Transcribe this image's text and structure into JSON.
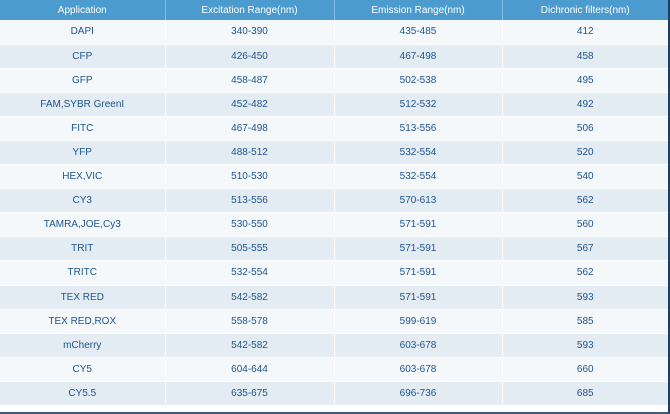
{
  "table": {
    "headers": [
      "Application",
      "Excitation Range(nm)",
      "Emission Range(nm)",
      "Dichronic filters(nm)"
    ],
    "rows": [
      [
        "DAPI",
        "340-390",
        "435-485",
        "412"
      ],
      [
        "CFP",
        "426-450",
        "467-498",
        "458"
      ],
      [
        "GFP",
        "458-487",
        "502-538",
        "495"
      ],
      [
        "FAM,SYBR GreenI",
        "452-482",
        "512-532",
        "492"
      ],
      [
        "FITC",
        "467-498",
        "513-556",
        "506"
      ],
      [
        "YFP",
        "488-512",
        "532-554",
        "520"
      ],
      [
        "HEX,VIC",
        "510-530",
        "532-554",
        "540"
      ],
      [
        "CY3",
        "513-556",
        "570-613",
        "562"
      ],
      [
        "TAMRA,JOE,Cy3",
        "530-550",
        "571-591",
        "560"
      ],
      [
        "TRIT",
        "505-555",
        "571-591",
        "567"
      ],
      [
        "TRITC",
        "532-554",
        "571-591",
        "562"
      ],
      [
        "TEX RED",
        "542-582",
        "571-591",
        "593"
      ],
      [
        "TEX RED,ROX",
        "558-578",
        "599-619",
        "585"
      ],
      [
        "mCherry",
        "542-582",
        "603-678",
        "593"
      ],
      [
        "CY5",
        "604-644",
        "603-678",
        "660"
      ],
      [
        "CY5.5",
        "635-675",
        "696-736",
        "685"
      ]
    ]
  },
  "colors": {
    "header_bg": "#4c9bce",
    "header_text": "#ffffff",
    "cell_text": "#21558f",
    "row_light": "#f4f8fb",
    "row_dark": "#e4ecf3"
  }
}
